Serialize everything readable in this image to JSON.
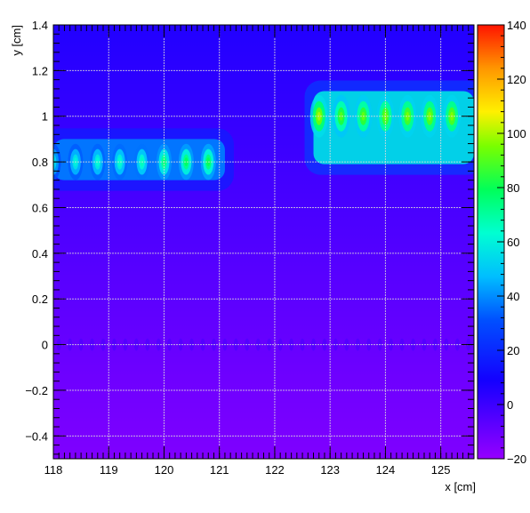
{
  "chart_data": {
    "type": "heatmap",
    "title": "",
    "xlabel": "x [cm]",
    "ylabel": "y [cm]",
    "xlim": [
      118,
      125.6
    ],
    "ylim": [
      -0.5,
      1.4
    ],
    "x_ticks": [
      118,
      119,
      120,
      121,
      122,
      123,
      124,
      125
    ],
    "x_tick_labels": [
      "118",
      "119",
      "120",
      "121",
      "122",
      "123",
      "124",
      "125"
    ],
    "y_ticks": [
      -0.4,
      -0.2,
      0,
      0.2,
      0.4,
      0.6,
      0.8,
      1,
      1.2,
      1.4
    ],
    "y_tick_labels": [
      "−0.4",
      "−0.2",
      "0",
      "0.2",
      "0.4",
      "0.6",
      "0.8",
      "1",
      "1.2",
      "1.4"
    ],
    "grid": true,
    "colorbar": {
      "zlim": [
        -200,
        1400
      ],
      "ticks": [
        -200,
        0,
        200,
        400,
        600,
        800,
        1000,
        1200,
        1400
      ],
      "tick_labels": [
        "−20",
        "0",
        "20",
        "40",
        "60",
        "80",
        "100",
        "120",
        "140"
      ]
    },
    "background": {
      "value_at_bottom": -150,
      "value_at_top": 60,
      "y_range": [
        -0.5,
        1.4
      ]
    },
    "stripes": [
      {
        "x_range": [
          118,
          121.1
        ],
        "y_range": [
          0.72,
          0.9
        ],
        "value": 380
      },
      {
        "x_range": [
          122.7,
          125.6
        ],
        "y_range": [
          0.79,
          1.11
        ],
        "value": 560
      }
    ],
    "hotspots": [
      {
        "x": 118.0,
        "y": 0.8,
        "value": 550
      },
      {
        "x": 118.4,
        "y": 0.8,
        "value": 600
      },
      {
        "x": 118.8,
        "y": 0.8,
        "value": 620
      },
      {
        "x": 119.2,
        "y": 0.8,
        "value": 640
      },
      {
        "x": 119.6,
        "y": 0.8,
        "value": 660
      },
      {
        "x": 120.0,
        "y": 0.8,
        "value": 750
      },
      {
        "x": 120.4,
        "y": 0.8,
        "value": 780
      },
      {
        "x": 120.8,
        "y": 0.8,
        "value": 800
      },
      {
        "x": 122.8,
        "y": 1.0,
        "value": 1000
      },
      {
        "x": 123.2,
        "y": 1.0,
        "value": 900
      },
      {
        "x": 123.6,
        "y": 1.0,
        "value": 920
      },
      {
        "x": 124.0,
        "y": 1.0,
        "value": 940
      },
      {
        "x": 124.4,
        "y": 1.0,
        "value": 950
      },
      {
        "x": 124.8,
        "y": 1.0,
        "value": 960
      },
      {
        "x": 125.2,
        "y": 1.0,
        "value": 960
      }
    ],
    "faint_row": {
      "y": 0.0,
      "value": -20,
      "x_range": [
        118,
        125.6
      ],
      "pitch": 0.2
    }
  }
}
